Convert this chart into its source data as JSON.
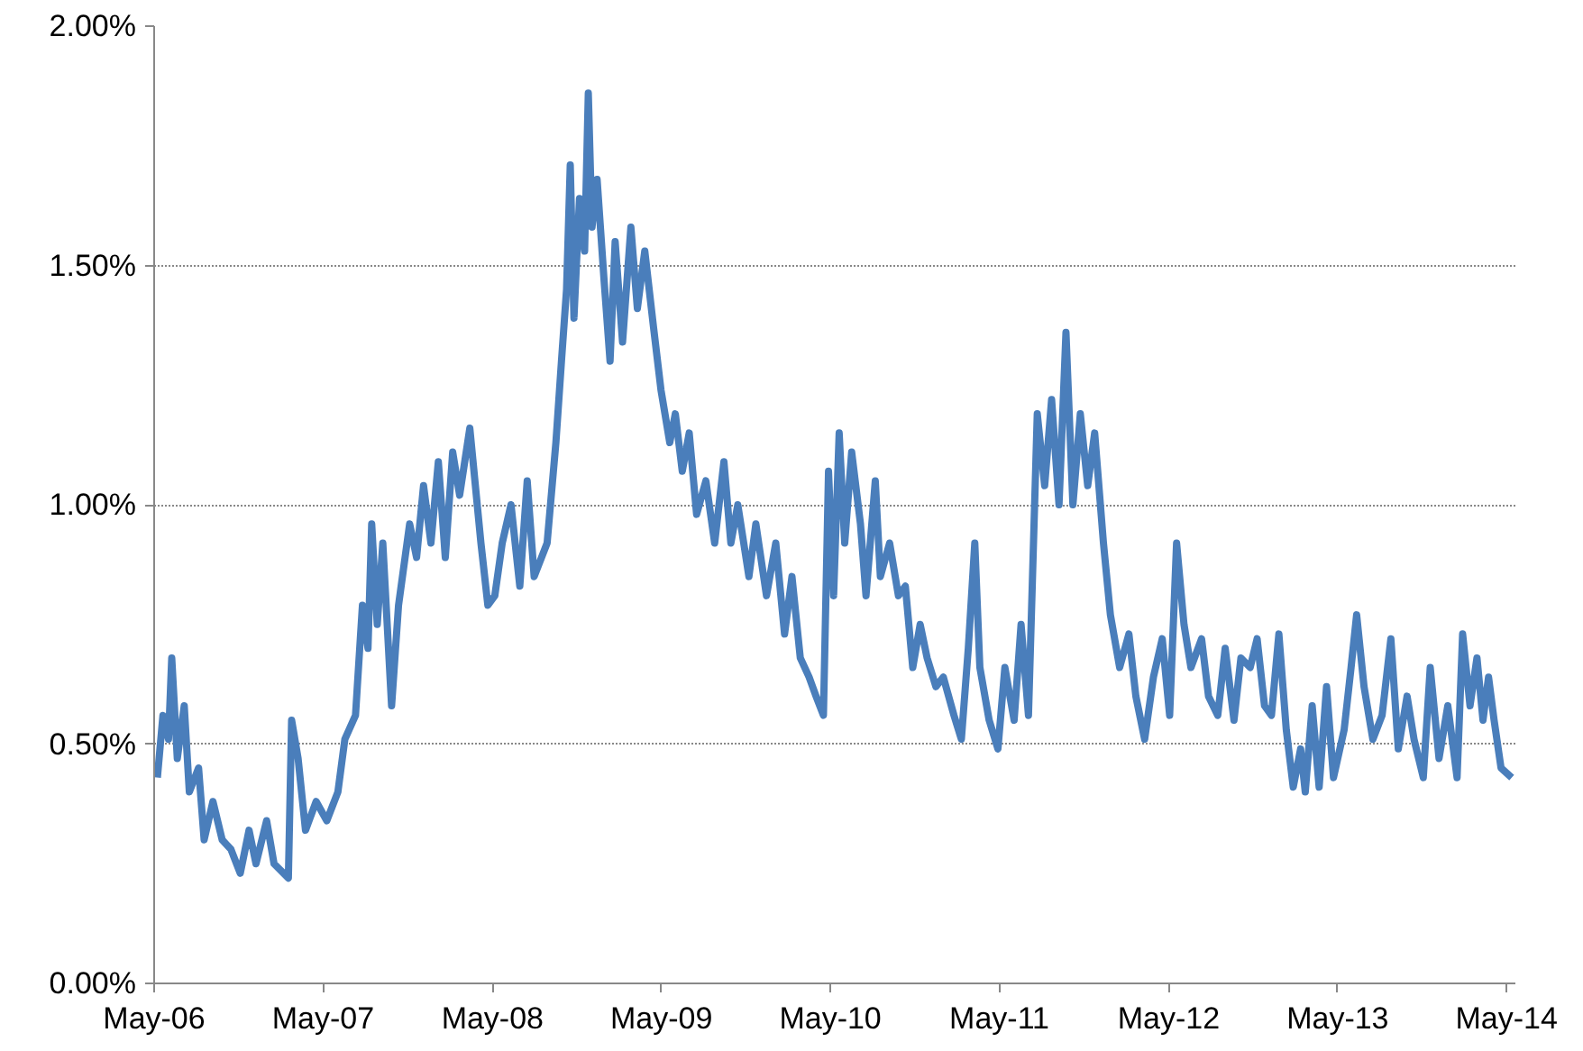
{
  "chart_data": {
    "type": "line",
    "x": [
      "2006-05-08",
      "2006-05-20",
      "2006-06-01",
      "2006-06-08",
      "2006-06-20",
      "2006-07-05",
      "2006-07-16",
      "2006-08-05",
      "2006-08-17",
      "2006-09-05",
      "2006-09-25",
      "2006-10-14",
      "2006-11-03",
      "2006-11-22",
      "2006-12-07",
      "2006-12-30",
      "2007-01-15",
      "2007-02-15",
      "2007-02-22",
      "2007-03-08",
      "2007-03-24",
      "2007-04-16",
      "2007-05-09",
      "2007-06-02",
      "2007-06-17",
      "2007-07-10",
      "2007-07-25",
      "2007-08-06",
      "2007-08-14",
      "2007-08-26",
      "2007-09-07",
      "2007-09-26",
      "2007-10-11",
      "2007-11-04",
      "2007-11-19",
      "2007-12-04",
      "2007-12-20",
      "2008-01-05",
      "2008-01-20",
      "2008-02-05",
      "2008-02-20",
      "2008-03-13",
      "2008-04-06",
      "2008-04-21",
      "2008-05-06",
      "2008-05-22",
      "2008-06-10",
      "2008-06-29",
      "2008-07-15",
      "2008-07-30",
      "2008-08-27",
      "2008-09-15",
      "2008-09-27",
      "2008-10-08",
      "2008-10-16",
      "2008-10-24",
      "2008-11-05",
      "2008-11-16",
      "2008-11-24",
      "2008-12-02",
      "2008-12-13",
      "2008-12-28",
      "2009-01-10",
      "2009-01-21",
      "2009-02-06",
      "2009-02-24",
      "2009-03-10",
      "2009-03-26",
      "2009-04-14",
      "2009-04-30",
      "2009-05-19",
      "2009-05-31",
      "2009-06-15",
      "2009-06-30",
      "2009-07-16",
      "2009-08-05",
      "2009-08-24",
      "2009-09-13",
      "2009-09-28",
      "2009-10-13",
      "2009-11-06",
      "2009-11-21",
      "2009-12-14",
      "2010-01-03",
      "2010-01-22",
      "2010-02-07",
      "2010-02-25",
      "2010-03-16",
      "2010-03-31",
      "2010-04-16",
      "2010-04-27",
      "2010-05-08",
      "2010-05-20",
      "2010-06-01",
      "2010-06-16",
      "2010-07-05",
      "2010-07-17",
      "2010-08-06",
      "2010-08-17",
      "2010-09-06",
      "2010-09-25",
      "2010-10-10",
      "2010-10-26",
      "2010-11-11",
      "2010-11-26",
      "2010-12-15",
      "2010-12-31",
      "2011-01-23",
      "2011-02-08",
      "2011-02-23",
      "2011-03-09",
      "2011-03-20",
      "2011-04-09",
      "2011-04-28",
      "2011-05-13",
      "2011-06-02",
      "2011-06-17",
      "2011-07-03",
      "2011-07-22",
      "2011-08-07",
      "2011-08-22",
      "2011-09-07",
      "2011-09-22",
      "2011-10-07",
      "2011-10-23",
      "2011-11-08",
      "2011-11-23",
      "2011-12-12",
      "2011-12-27",
      "2012-01-16",
      "2012-02-05",
      "2012-02-20",
      "2012-03-10",
      "2012-03-29",
      "2012-04-17",
      "2012-05-03",
      "2012-05-18",
      "2012-06-03",
      "2012-06-18",
      "2012-07-11",
      "2012-07-26",
      "2012-08-15",
      "2012-08-31",
      "2012-09-19",
      "2012-10-04",
      "2012-10-24",
      "2012-11-08",
      "2012-11-24",
      "2012-12-09",
      "2012-12-25",
      "2013-01-10",
      "2013-01-25",
      "2013-02-10",
      "2013-02-20",
      "2013-03-07",
      "2013-03-22",
      "2013-04-07",
      "2013-04-22",
      "2013-05-15",
      "2013-05-30",
      "2013-06-11",
      "2013-06-27",
      "2013-07-16",
      "2013-08-05",
      "2013-08-24",
      "2013-09-09",
      "2013-09-28",
      "2013-10-13",
      "2013-11-02",
      "2013-11-17",
      "2013-12-06",
      "2013-12-25",
      "2014-01-14",
      "2014-01-26",
      "2014-02-11",
      "2014-02-26",
      "2014-03-11",
      "2014-03-23",
      "2014-04-04",
      "2014-04-19",
      "2014-05-12"
    ],
    "series": [
      {
        "color": "#4a7ebb",
        "values": [
          0.43,
          0.56,
          0.51,
          0.68,
          0.47,
          0.58,
          0.4,
          0.45,
          0.3,
          0.38,
          0.3,
          0.28,
          0.23,
          0.32,
          0.25,
          0.34,
          0.25,
          0.22,
          0.55,
          0.47,
          0.32,
          0.38,
          0.34,
          0.4,
          0.51,
          0.56,
          0.79,
          0.7,
          0.96,
          0.75,
          0.92,
          0.58,
          0.79,
          0.96,
          0.89,
          1.04,
          0.92,
          1.09,
          0.89,
          1.11,
          1.02,
          1.16,
          0.92,
          0.79,
          0.81,
          0.92,
          1.0,
          0.83,
          1.05,
          0.85,
          0.92,
          1.13,
          1.3,
          1.45,
          1.71,
          1.39,
          1.64,
          1.53,
          1.86,
          1.58,
          1.68,
          1.47,
          1.3,
          1.55,
          1.34,
          1.58,
          1.41,
          1.53,
          1.37,
          1.24,
          1.13,
          1.19,
          1.07,
          1.15,
          0.98,
          1.05,
          0.92,
          1.09,
          0.92,
          1.0,
          0.85,
          0.96,
          0.81,
          0.92,
          0.73,
          0.85,
          0.68,
          0.64,
          0.6,
          0.56,
          1.07,
          0.81,
          1.15,
          0.92,
          1.11,
          0.96,
          0.81,
          1.05,
          0.85,
          0.92,
          0.81,
          0.83,
          0.66,
          0.75,
          0.68,
          0.62,
          0.64,
          0.56,
          0.51,
          0.7,
          0.92,
          0.66,
          0.55,
          0.49,
          0.66,
          0.55,
          0.75,
          0.56,
          1.19,
          1.04,
          1.22,
          1.0,
          1.36,
          1.0,
          1.19,
          1.04,
          1.15,
          0.92,
          0.77,
          0.66,
          0.73,
          0.6,
          0.51,
          0.64,
          0.72,
          0.56,
          0.92,
          0.75,
          0.66,
          0.72,
          0.6,
          0.56,
          0.7,
          0.55,
          0.68,
          0.66,
          0.72,
          0.58,
          0.56,
          0.73,
          0.53,
          0.41,
          0.49,
          0.4,
          0.58,
          0.41,
          0.62,
          0.43,
          0.53,
          0.66,
          0.77,
          0.62,
          0.51,
          0.56,
          0.72,
          0.49,
          0.6,
          0.51,
          0.43,
          0.66,
          0.47,
          0.58,
          0.43,
          0.73,
          0.58,
          0.68,
          0.55,
          0.64,
          0.55,
          0.45,
          0.43
        ]
      }
    ],
    "xlim": [
      "2006-05-01",
      "2014-05-20"
    ],
    "xticks": [
      {
        "value": "2006-05-01",
        "label": "May-06"
      },
      {
        "value": "2007-05-01",
        "label": "May-07"
      },
      {
        "value": "2008-05-01",
        "label": "May-08"
      },
      {
        "value": "2009-05-01",
        "label": "May-09"
      },
      {
        "value": "2010-05-01",
        "label": "May-10"
      },
      {
        "value": "2011-05-01",
        "label": "May-11"
      },
      {
        "value": "2012-05-01",
        "label": "May-12"
      },
      {
        "value": "2013-05-01",
        "label": "May-13"
      },
      {
        "value": "2014-05-01",
        "label": "May-14"
      }
    ],
    "ylim": [
      0,
      2
    ],
    "yticks": [
      {
        "value": 0,
        "label": "0.00%"
      },
      {
        "value": 0.5,
        "label": "0.50%"
      },
      {
        "value": 1,
        "label": "1.00%"
      },
      {
        "value": 1.5,
        "label": "1.50%"
      },
      {
        "value": 2,
        "label": "2.00%"
      }
    ],
    "grid": "y"
  }
}
